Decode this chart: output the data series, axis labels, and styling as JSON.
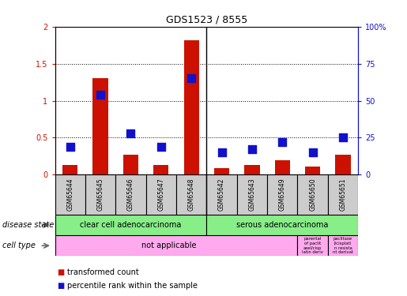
{
  "title": "GDS1523 / 8555",
  "samples": [
    "GSM65644",
    "GSM65645",
    "GSM65646",
    "GSM65647",
    "GSM65648",
    "GSM65642",
    "GSM65643",
    "GSM65649",
    "GSM65650",
    "GSM65651"
  ],
  "transformed_count": [
    0.13,
    1.3,
    0.27,
    0.13,
    1.82,
    0.09,
    0.13,
    0.2,
    0.11,
    0.27
  ],
  "percentile_rank_pct": [
    19,
    54,
    28,
    19,
    65,
    15,
    17,
    22,
    15,
    25
  ],
  "ylim_left": [
    0,
    2
  ],
  "ylim_right": [
    0,
    100
  ],
  "yticks_left": [
    0,
    0.5,
    1.0,
    1.5,
    2.0
  ],
  "yticks_right": [
    0,
    25,
    50,
    75,
    100
  ],
  "ytick_labels_left": [
    "0",
    "0.5",
    "1",
    "1.5",
    "2"
  ],
  "ytick_labels_right": [
    "0",
    "25",
    "50",
    "75",
    "100%"
  ],
  "bar_color": "#cc1100",
  "dot_color": "#1111cc",
  "disease_state_labels": [
    "clear cell adenocarcinoma",
    "serous adenocarcinoma"
  ],
  "disease_state_color": "#88ee88",
  "cell_type_color": "#ffaaee",
  "sample_box_color": "#cccccc",
  "bar_width": 0.5,
  "dot_size": 45,
  "left_label_disease": "disease state",
  "left_label_cell": "cell type",
  "legend_bar_label": "transformed count",
  "legend_dot_label": "percentile rank within the sample",
  "cell_text_main": "not applicable",
  "cell_text_2": "parental\nof paclit\naxel/cisp\nlatin deriv",
  "cell_text_3": "paclitaxe\nl/cisplati\nn resista\nnt derivat"
}
